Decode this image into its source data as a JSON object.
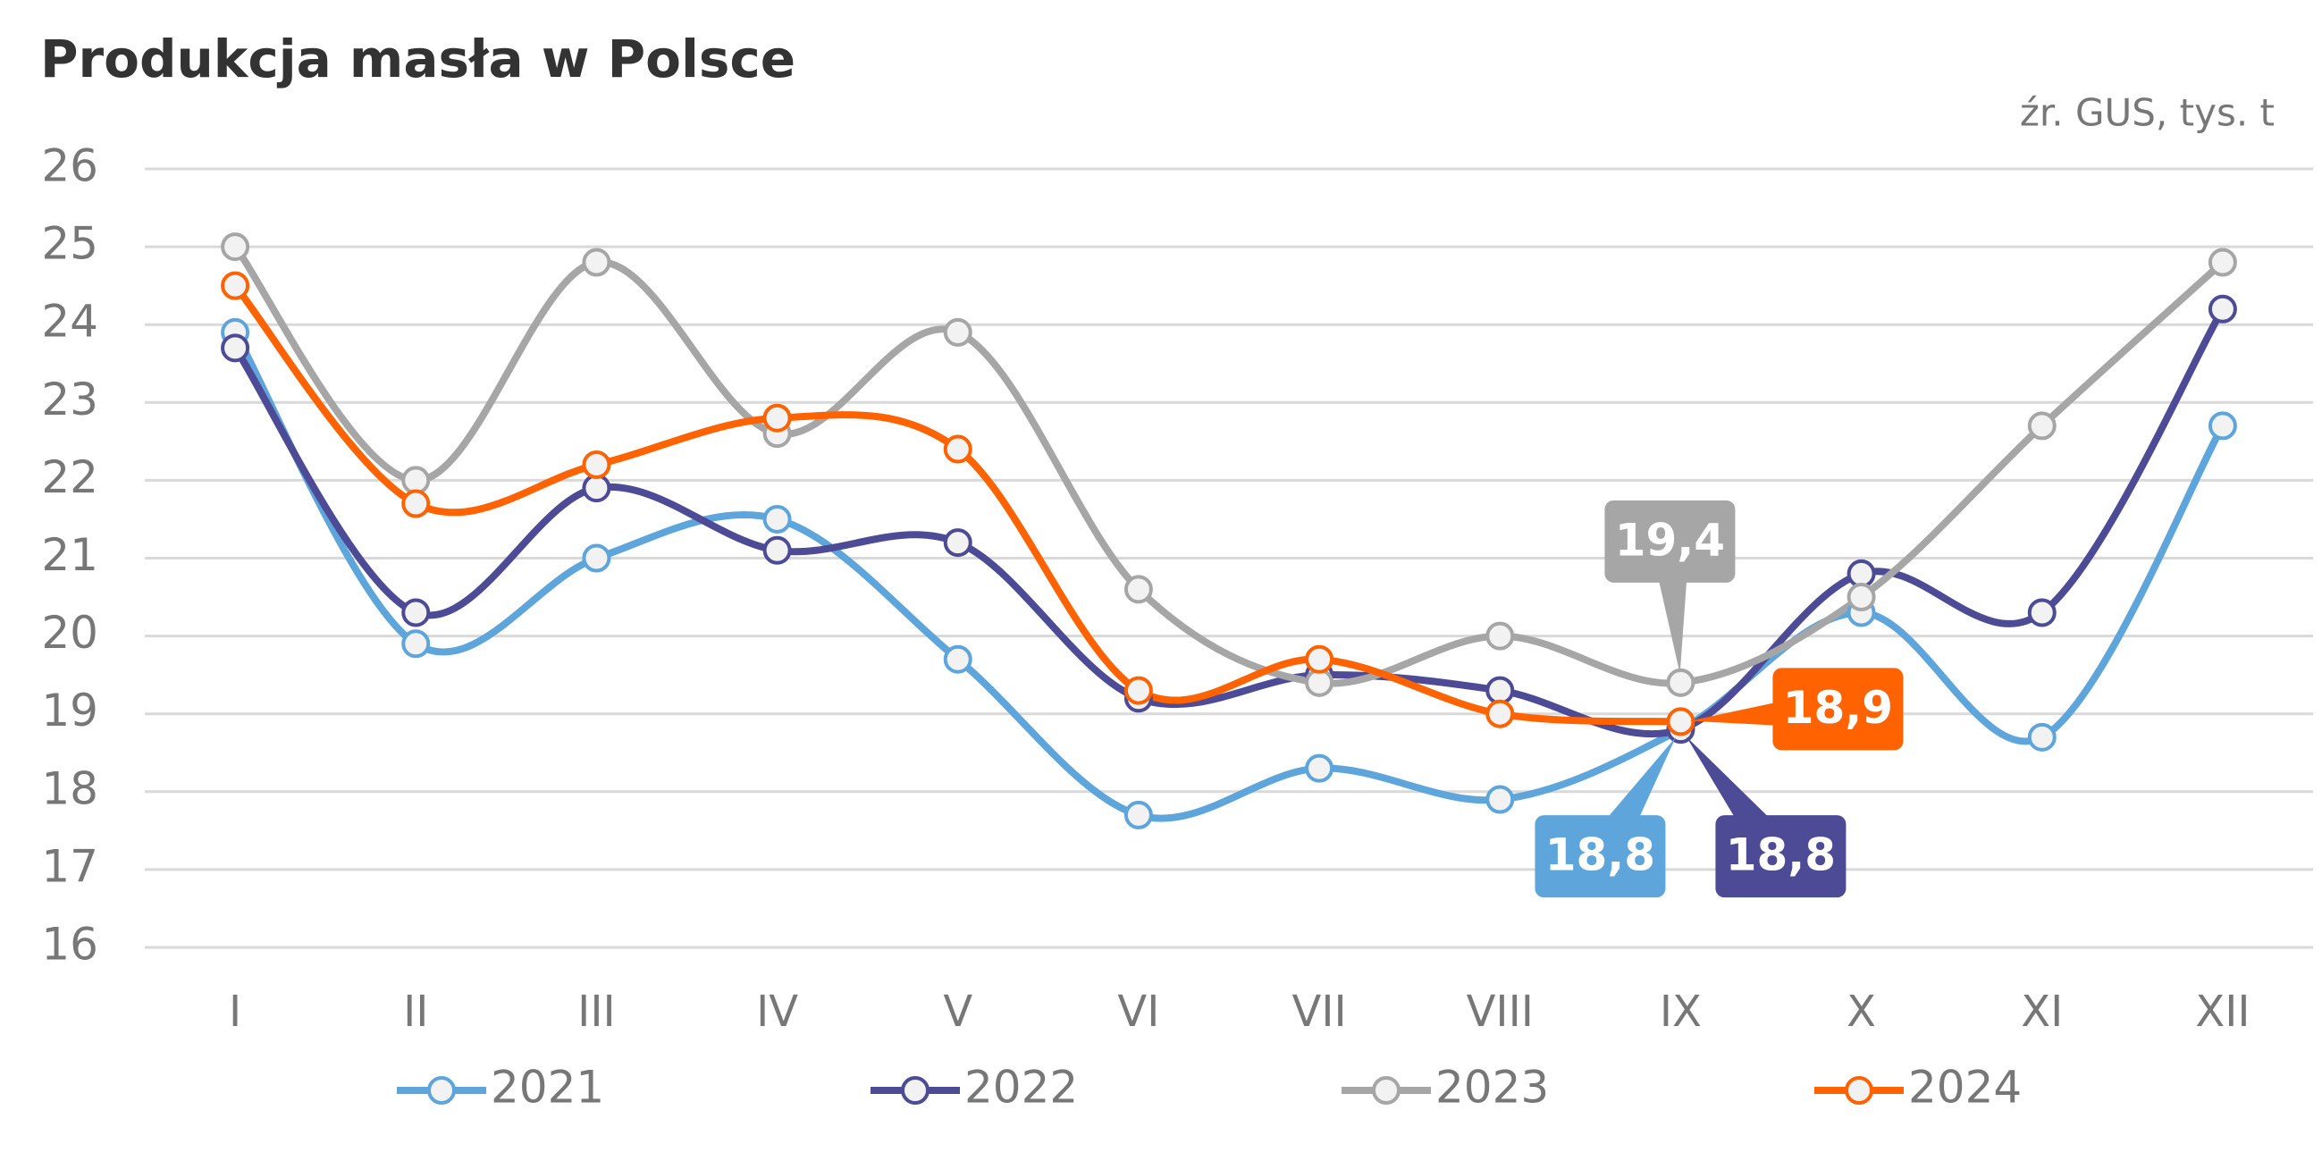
{
  "chart_data": {
    "type": "line",
    "title": "Produkcja masła w Polsce",
    "subtitle": "źr. GUS, tys. t",
    "categories": [
      "I",
      "II",
      "III",
      "IV",
      "V",
      "VI",
      "VII",
      "VIII",
      "IX",
      "X",
      "XI",
      "XII"
    ],
    "ylim": [
      16,
      26
    ],
    "yticks": [
      16,
      17,
      18,
      19,
      20,
      21,
      22,
      23,
      24,
      25,
      26
    ],
    "grid": true,
    "smooth": true,
    "legend": "bottom",
    "series": [
      {
        "name": "2021",
        "color": "#5ea5db",
        "values": [
          23.9,
          19.9,
          21.0,
          21.5,
          19.7,
          17.7,
          18.3,
          17.9,
          18.8,
          20.3,
          18.7,
          22.7
        ],
        "value_labels": [
          null,
          null,
          null,
          null,
          null,
          null,
          null,
          null,
          "18,8",
          null,
          null,
          null
        ]
      },
      {
        "name": "2022",
        "color": "#4d4a96",
        "values": [
          23.7,
          20.3,
          21.9,
          21.1,
          21.2,
          19.2,
          19.5,
          19.3,
          18.8,
          20.8,
          20.3,
          24.2
        ],
        "value_labels": [
          null,
          null,
          null,
          null,
          null,
          null,
          null,
          null,
          "18,8",
          null,
          null,
          null
        ]
      },
      {
        "name": "2023",
        "color": "#a6a6a6",
        "values": [
          25.0,
          22.0,
          24.8,
          22.6,
          23.9,
          20.6,
          19.4,
          20.0,
          19.4,
          20.5,
          22.7,
          24.8
        ],
        "value_labels": [
          null,
          null,
          null,
          null,
          null,
          null,
          null,
          null,
          "19,4",
          null,
          null,
          null
        ]
      },
      {
        "name": "2024",
        "color": "#ff6200",
        "values": [
          24.5,
          21.7,
          22.2,
          22.8,
          22.4,
          19.3,
          19.7,
          19.0,
          18.9,
          null,
          null,
          null
        ],
        "value_labels": [
          null,
          null,
          null,
          null,
          null,
          null,
          null,
          null,
          "18,9",
          null,
          null,
          null
        ]
      }
    ]
  }
}
